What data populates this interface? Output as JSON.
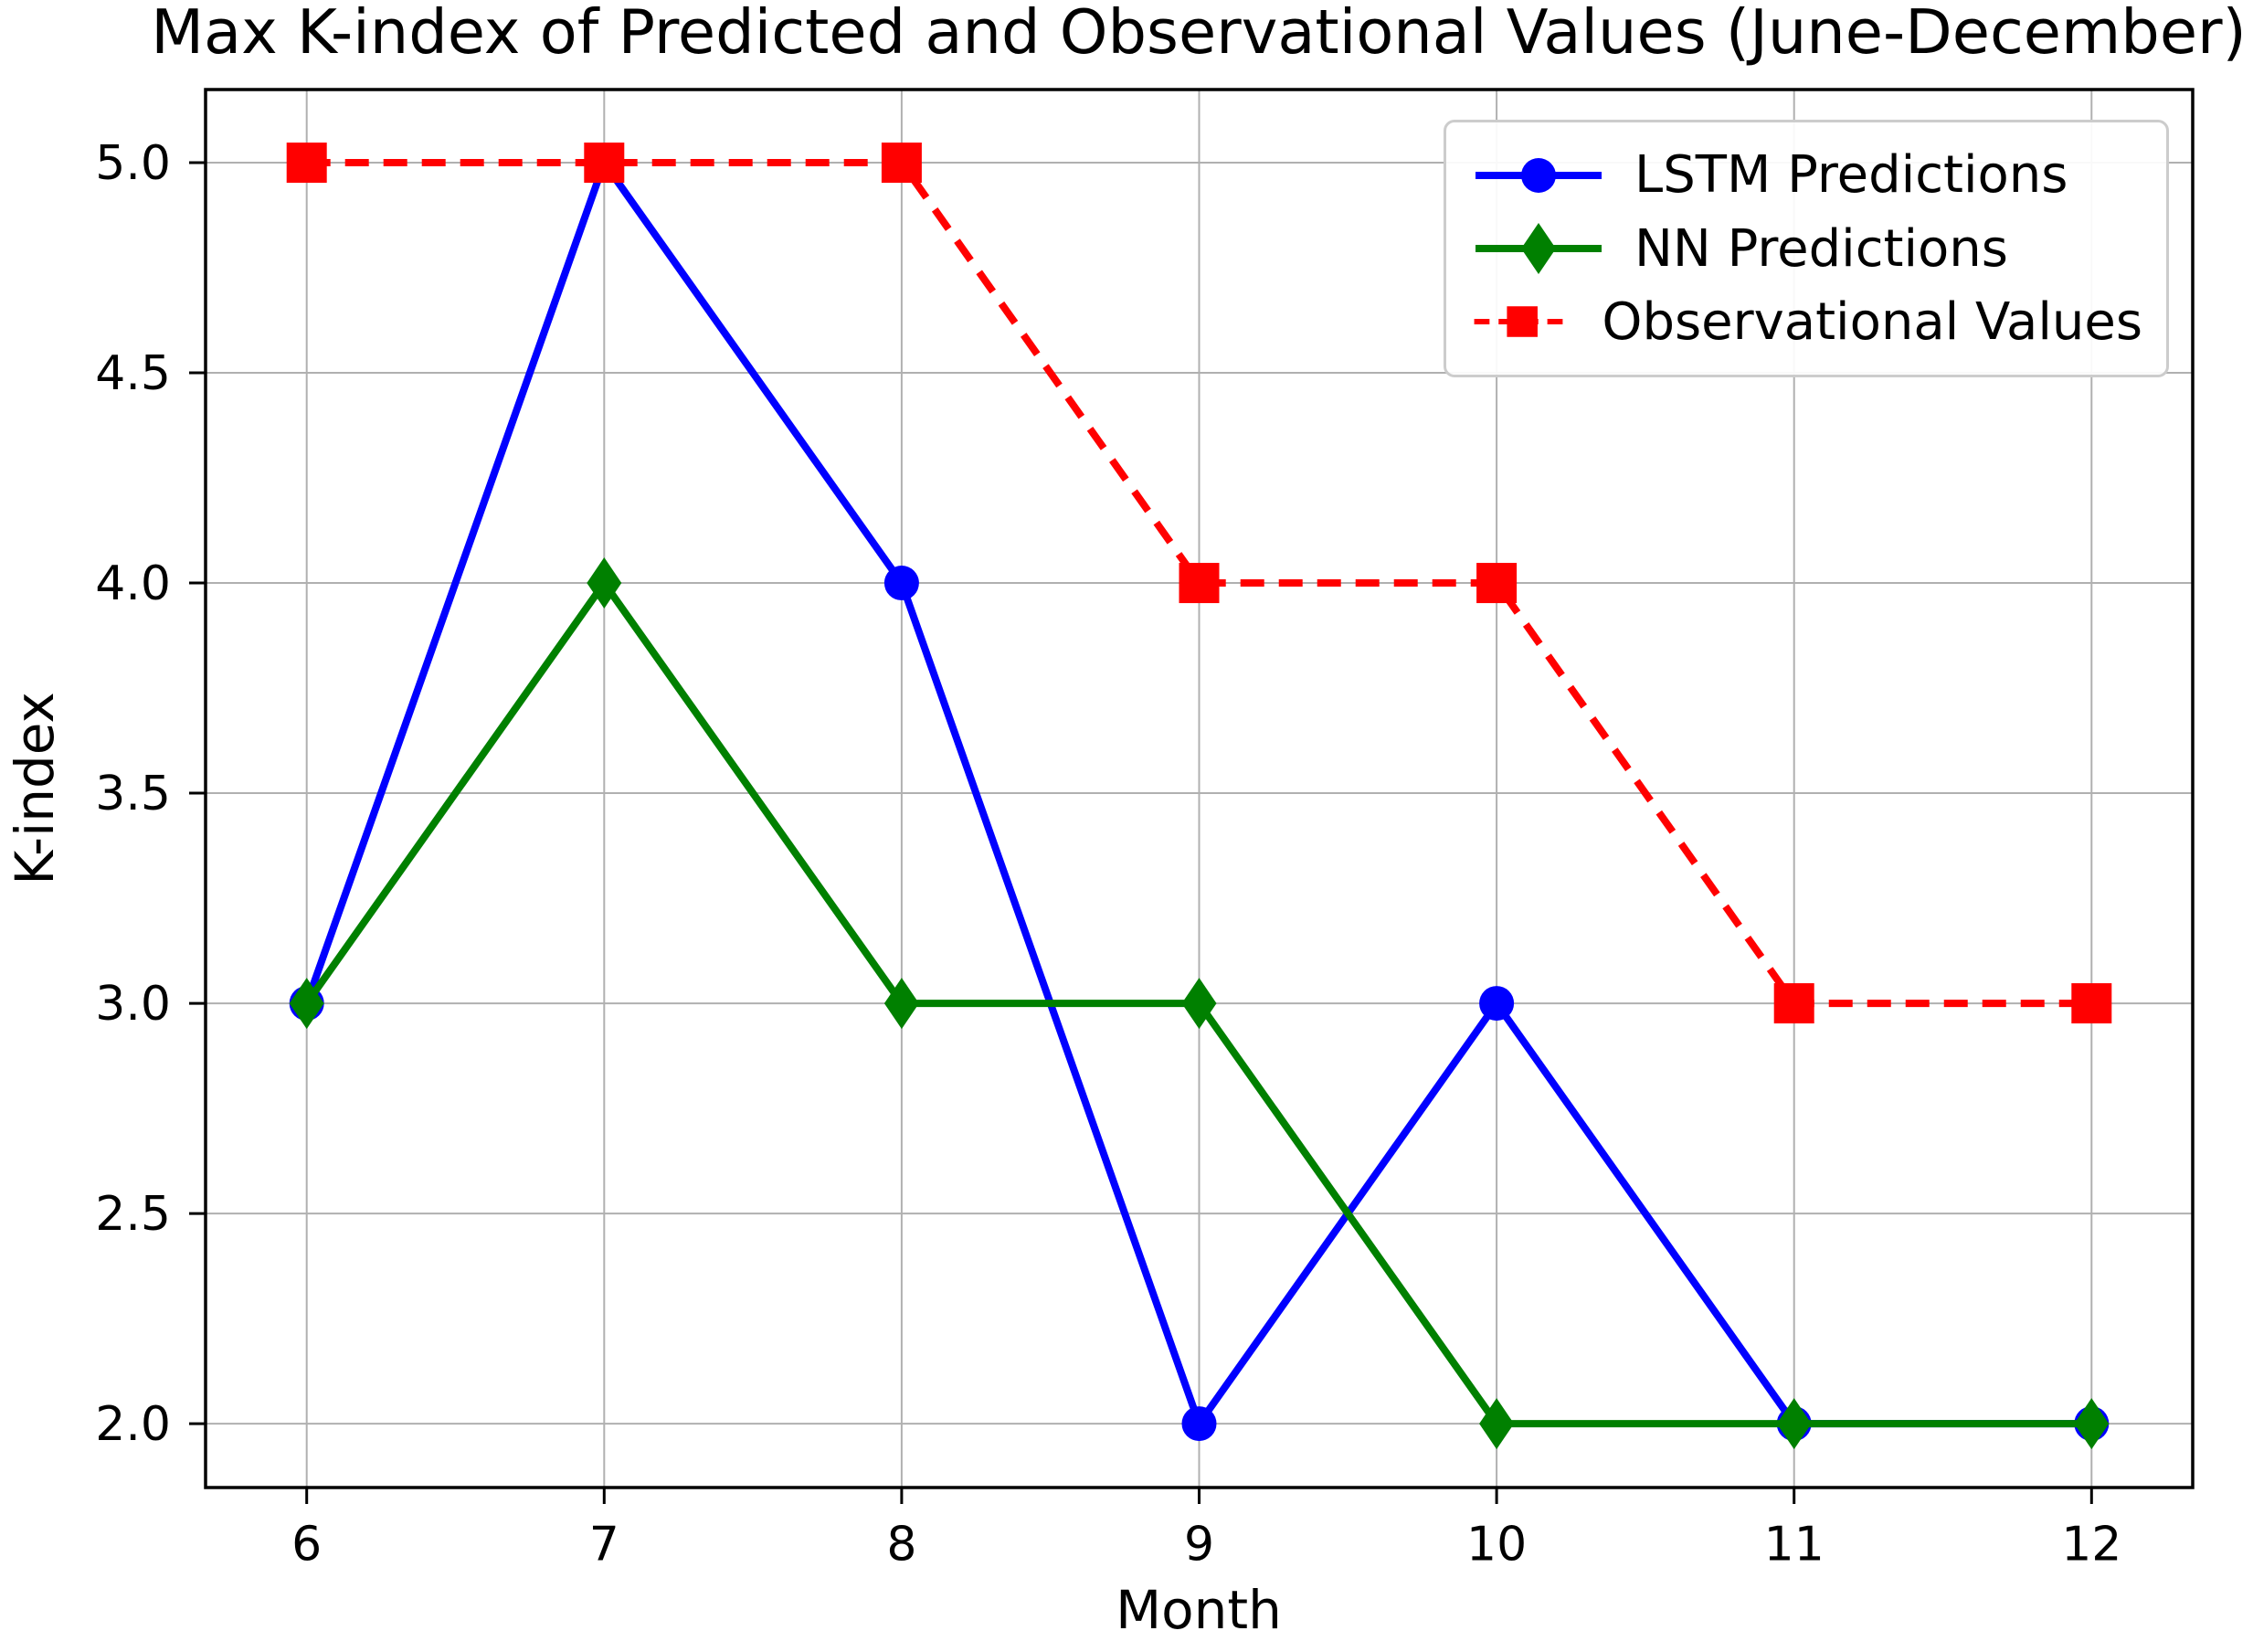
{
  "chart_data": {
    "type": "line",
    "title": "Max K-index of Predicted and Observational Values (June-December)",
    "xlabel": "Month",
    "ylabel": "K-index",
    "x": [
      6,
      7,
      8,
      9,
      10,
      11,
      12
    ],
    "x_tick_labels": [
      "6",
      "7",
      "8",
      "9",
      "10",
      "11",
      "12"
    ],
    "y_ticks": [
      2.0,
      2.5,
      3.0,
      3.5,
      4.0,
      4.5,
      5.0
    ],
    "y_tick_labels": [
      "2.0",
      "2.5",
      "3.0",
      "3.5",
      "4.0",
      "4.5",
      "5.0"
    ],
    "xlim": [
      5.66,
      12.34
    ],
    "ylim": [
      1.848,
      5.174
    ],
    "grid": true,
    "legend_position": "upper right",
    "series": [
      {
        "name": "LSTM Predictions",
        "color": "#0000ff",
        "marker": "circle",
        "line_style": "solid",
        "values": [
          3,
          5,
          4,
          2,
          3,
          2,
          2
        ]
      },
      {
        "name": "NN Predictions",
        "color": "#008000",
        "marker": "diamond",
        "line_style": "solid",
        "values": [
          3,
          4,
          3,
          3,
          2,
          2,
          2
        ]
      },
      {
        "name": "Observational Values",
        "color": "#ff0000",
        "marker": "square",
        "line_style": "dashed",
        "values": [
          5,
          5,
          5,
          4,
          4,
          3,
          3
        ]
      }
    ]
  },
  "colors": {
    "grid": "#b0b0b0",
    "frame": "#000000",
    "background": "#ffffff",
    "text": "#000000",
    "legend_border": "#cccccc"
  }
}
